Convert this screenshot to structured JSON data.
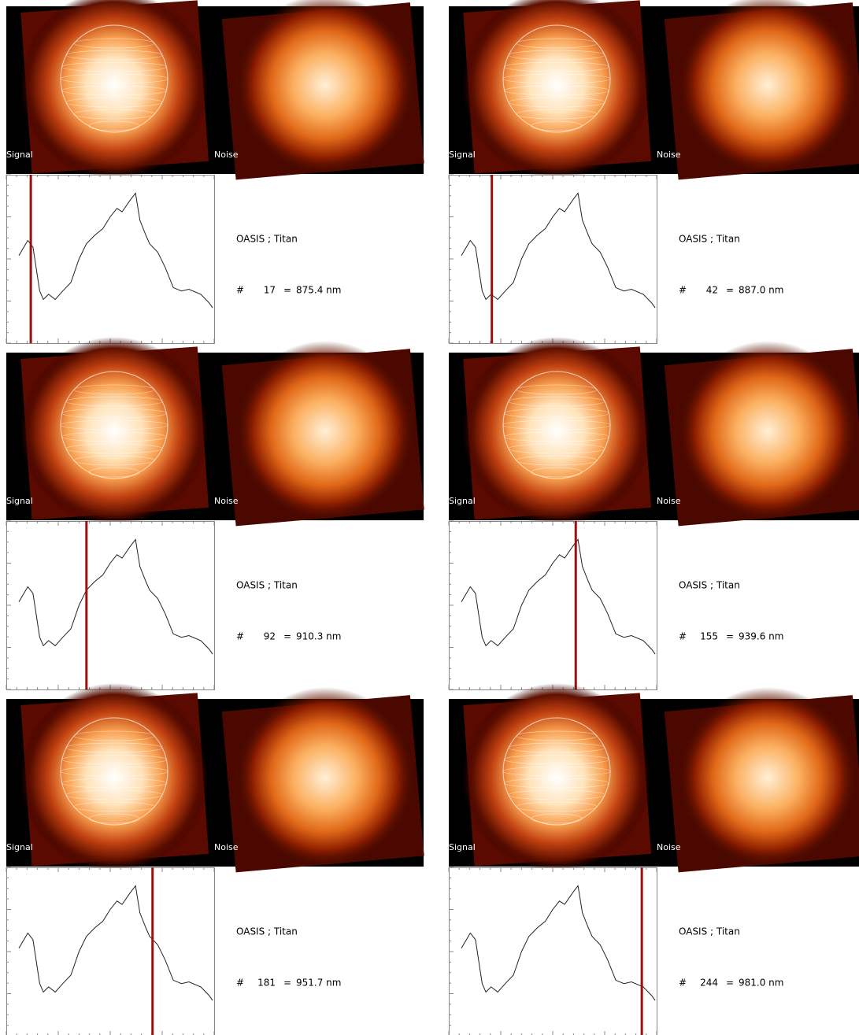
{
  "spectrum": {
    "x": [
      1,
      13,
      20,
      29,
      34,
      41,
      50,
      60,
      71,
      82,
      92,
      103,
      114,
      124,
      133,
      140,
      151,
      158,
      164,
      172,
      177,
      188,
      198,
      209,
      220,
      230,
      246,
      257,
      262
    ],
    "values": [
      0.52,
      0.61,
      0.57,
      0.31,
      0.26,
      0.29,
      0.26,
      0.31,
      0.36,
      0.5,
      0.59,
      0.64,
      0.68,
      0.75,
      0.8,
      0.78,
      0.85,
      0.89,
      0.73,
      0.64,
      0.59,
      0.54,
      0.45,
      0.33,
      0.31,
      0.32,
      0.29,
      0.24,
      0.21
    ],
    "xlim": [
      -16,
      264
    ],
    "ylim": [
      0,
      1
    ]
  },
  "panels": [
    {
      "signal": "Signal",
      "noise": "Noise",
      "title": "OASIS ; Titan",
      "hash": "#",
      "index": 17,
      "equals": "=",
      "wavelength": "875.4 nm"
    },
    {
      "signal": "Signal",
      "noise": "Noise",
      "title": "OASIS ; Titan",
      "hash": "#",
      "index": 42,
      "equals": "=",
      "wavelength": "887.0 nm"
    },
    {
      "signal": "Signal",
      "noise": "Noise",
      "title": "OASIS ; Titan",
      "hash": "#",
      "index": 92,
      "equals": "=",
      "wavelength": "910.3 nm"
    },
    {
      "signal": "Signal",
      "noise": "Noise",
      "title": "OASIS ; Titan",
      "hash": "#",
      "index": 155,
      "equals": "=",
      "wavelength": "939.6 nm"
    },
    {
      "signal": "Signal",
      "noise": "Noise",
      "title": "OASIS ; Titan",
      "hash": "#",
      "index": 181,
      "equals": "=",
      "wavelength": "951.7 nm"
    },
    {
      "signal": "Signal",
      "noise": "Noise",
      "title": "OASIS ; Titan",
      "hash": "#",
      "index": 244,
      "equals": "=",
      "wavelength": "981.0 nm"
    }
  ]
}
